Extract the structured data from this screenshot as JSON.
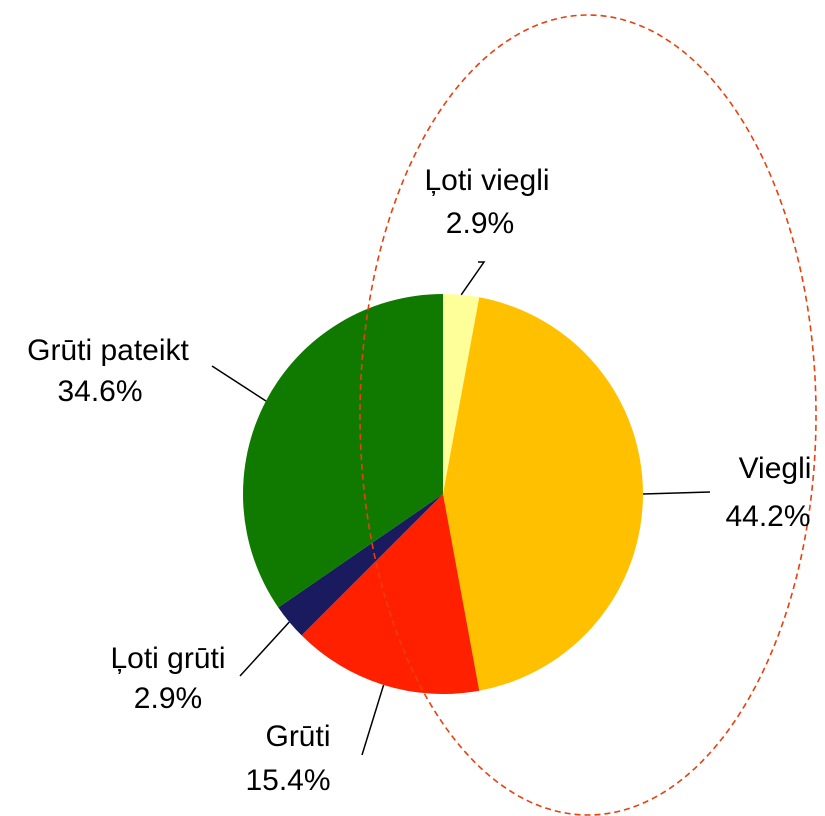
{
  "chart_data": {
    "type": "pie",
    "categories": [
      "Ļoti viegli",
      "Viegli",
      "Grūti",
      "Ļoti grūti",
      "Grūti pateikt"
    ],
    "values": [
      2.9,
      44.2,
      15.4,
      2.9,
      34.6
    ],
    "value_labels": [
      "2.9%",
      "44.2%",
      "15.4%",
      "2.9%",
      "34.6%"
    ],
    "colors": [
      "#ffff99",
      "#ffc000",
      "#ff2000",
      "#1a1a5e",
      "#107a00"
    ]
  }
}
